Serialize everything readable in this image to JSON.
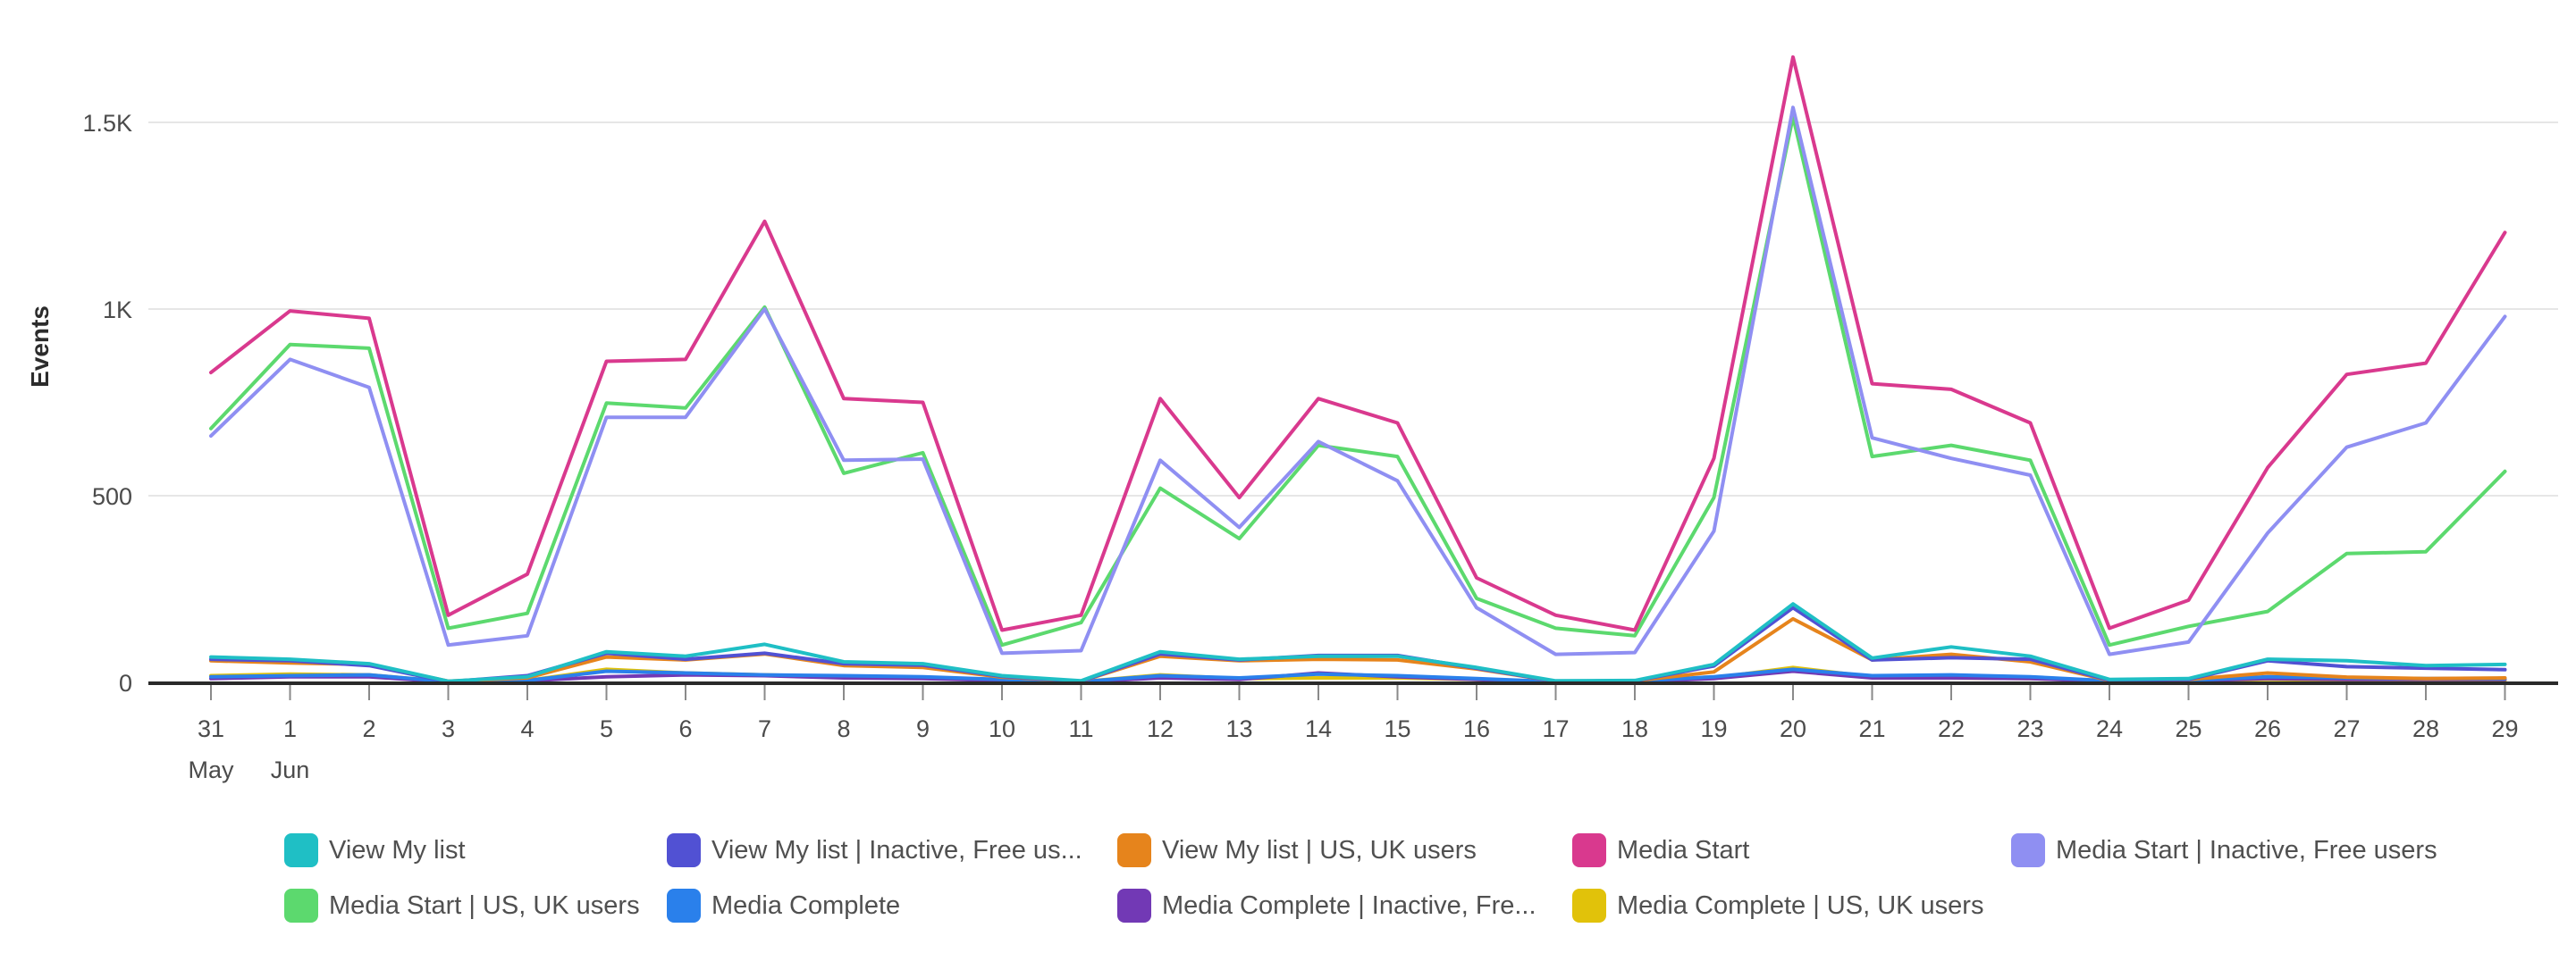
{
  "chart_data": {
    "type": "line",
    "ylabel": "Events",
    "ylim": [
      0,
      1700
    ],
    "y_ticks": [
      {
        "value": 0,
        "label": "0"
      },
      {
        "value": 500,
        "label": "500"
      },
      {
        "value": 1000,
        "label": "1K"
      },
      {
        "value": 1500,
        "label": "1.5K"
      }
    ],
    "grid": true,
    "legend_position": "bottom",
    "x": [
      "31",
      "1",
      "2",
      "3",
      "4",
      "5",
      "6",
      "7",
      "8",
      "9",
      "10",
      "11",
      "12",
      "13",
      "14",
      "15",
      "16",
      "17",
      "18",
      "19",
      "20",
      "21",
      "22",
      "23",
      "24",
      "25",
      "26",
      "27",
      "28",
      "29"
    ],
    "x_month_labels": [
      {
        "index": 0,
        "label": "May"
      },
      {
        "index": 1,
        "label": "Jun"
      }
    ],
    "series": [
      {
        "name": "View My list",
        "color": "#1fbfc5",
        "values": [
          68,
          62,
          50,
          3,
          15,
          82,
          70,
          102,
          55,
          50,
          18,
          4,
          82,
          62,
          70,
          70,
          40,
          4,
          5,
          48,
          210,
          65,
          95,
          70,
          8,
          10,
          62,
          58,
          45,
          48
        ]
      },
      {
        "name": "View My list | Inactive, Free us...",
        "color": "#5151d3",
        "values": [
          62,
          58,
          45,
          2,
          18,
          78,
          62,
          78,
          50,
          46,
          16,
          3,
          76,
          60,
          72,
          72,
          38,
          3,
          4,
          44,
          200,
          60,
          66,
          62,
          6,
          8,
          58,
          42,
          38,
          34
        ]
      },
      {
        "name": "View My list | US, UK users",
        "color": "#e6841c",
        "values": [
          58,
          52,
          48,
          3,
          12,
          68,
          60,
          76,
          45,
          40,
          14,
          3,
          70,
          58,
          62,
          60,
          36,
          3,
          4,
          28,
          170,
          60,
          75,
          55,
          5,
          8,
          25,
          14,
          10,
          12
        ]
      },
      {
        "name": "Media Start",
        "color": "#d9398e",
        "values": [
          830,
          995,
          975,
          180,
          290,
          860,
          865,
          1235,
          760,
          750,
          140,
          180,
          760,
          495,
          760,
          695,
          280,
          180,
          140,
          600,
          1675,
          800,
          785,
          695,
          145,
          220,
          575,
          825,
          855,
          1205
        ]
      },
      {
        "name": "Media Start | Inactive, Free users",
        "color": "#8f8ff2",
        "values": [
          660,
          865,
          790,
          100,
          125,
          710,
          710,
          1000,
          595,
          598,
          78,
          85,
          595,
          415,
          645,
          540,
          200,
          75,
          80,
          405,
          1540,
          655,
          600,
          555,
          75,
          108,
          400,
          630,
          695,
          980
        ]
      },
      {
        "name": "Media Start | US, UK users",
        "color": "#5cd96e",
        "values": [
          680,
          905,
          895,
          145,
          185,
          748,
          735,
          1005,
          560,
          615,
          100,
          160,
          520,
          385,
          635,
          605,
          225,
          145,
          125,
          495,
          1515,
          605,
          635,
          595,
          100,
          150,
          190,
          345,
          350,
          565
        ]
      },
      {
        "name": "Media Complete",
        "color": "#2a80eb",
        "values": [
          15,
          18,
          20,
          2,
          5,
          30,
          25,
          20,
          18,
          15,
          8,
          2,
          18,
          12,
          22,
          18,
          10,
          2,
          3,
          15,
          35,
          18,
          20,
          15,
          4,
          5,
          15,
          12,
          10,
          10
        ]
      },
      {
        "name": "Media Complete | Inactive, Fre...",
        "color": "#7239b5",
        "values": [
          10,
          15,
          15,
          1,
          4,
          15,
          20,
          18,
          12,
          10,
          5,
          1,
          12,
          8,
          25,
          15,
          8,
          1,
          2,
          10,
          30,
          12,
          12,
          10,
          3,
          4,
          10,
          8,
          8,
          8
        ]
      },
      {
        "name": "Media Complete | US, UK users",
        "color": "#e1c20a",
        "values": [
          18,
          22,
          20,
          2,
          5,
          35,
          25,
          20,
          15,
          12,
          6,
          2,
          20,
          10,
          12,
          12,
          8,
          2,
          3,
          12,
          40,
          15,
          12,
          10,
          4,
          5,
          8,
          6,
          5,
          5
        ]
      }
    ]
  }
}
